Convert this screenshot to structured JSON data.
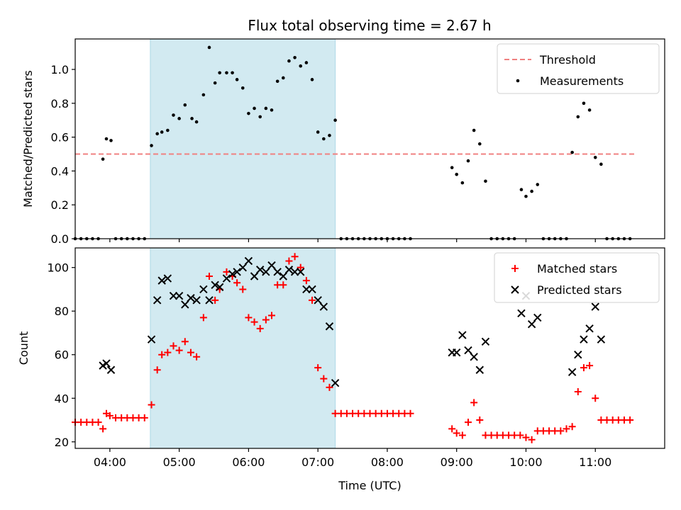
{
  "figure": {
    "title": "Flux total observing time = 2.67 h"
  },
  "chart_data": [
    {
      "type": "scatter",
      "xlabel": "",
      "ylabel": "Matched/Predicted stars",
      "xlim": [
        "03:30",
        "12:00"
      ],
      "ylim": [
        0,
        1.18
      ],
      "yticks": [
        "0.0",
        "0.2",
        "0.4",
        "0.6",
        "0.8",
        "1.0"
      ],
      "xticks": [
        "04:00",
        "05:00",
        "06:00",
        "07:00",
        "08:00",
        "09:00",
        "10:00",
        "11:00"
      ],
      "shaded_span": [
        "04:35",
        "07:15"
      ],
      "shaded_color": "#add8e6",
      "legend": {
        "position": "top-right",
        "entries": [
          "Threshold",
          "Measurements"
        ]
      },
      "threshold": {
        "name": "Threshold",
        "value": 0.5,
        "x_range": [
          "03:30",
          "11:35"
        ],
        "color": "#f08080",
        "style": "dashed"
      },
      "series": [
        {
          "name": "Measurements",
          "color": "#000000",
          "marker": "dot",
          "points": [
            [
              "03:30",
              0
            ],
            [
              "03:35",
              0
            ],
            [
              "03:40",
              0
            ],
            [
              "03:45",
              0
            ],
            [
              "03:50",
              0
            ],
            [
              "03:54",
              0.47
            ],
            [
              "03:57",
              0.59
            ],
            [
              "04:01",
              0.58
            ],
            [
              "04:05",
              0
            ],
            [
              "04:10",
              0
            ],
            [
              "04:15",
              0
            ],
            [
              "04:20",
              0
            ],
            [
              "04:25",
              0
            ],
            [
              "04:30",
              0
            ],
            [
              "04:36",
              0.55
            ],
            [
              "04:41",
              0.62
            ],
            [
              "04:45",
              0.63
            ],
            [
              "04:50",
              0.64
            ],
            [
              "04:55",
              0.73
            ],
            [
              "05:00",
              0.71
            ],
            [
              "05:05",
              0.79
            ],
            [
              "05:11",
              0.71
            ],
            [
              "05:15",
              0.69
            ],
            [
              "05:21",
              0.85
            ],
            [
              "05:26",
              1.13
            ],
            [
              "05:31",
              0.92
            ],
            [
              "05:35",
              0.98
            ],
            [
              "05:41",
              0.98
            ],
            [
              "05:46",
              0.98
            ],
            [
              "05:50",
              0.94
            ],
            [
              "05:55",
              0.89
            ],
            [
              "06:00",
              0.74
            ],
            [
              "06:05",
              0.77
            ],
            [
              "06:10",
              0.72
            ],
            [
              "06:15",
              0.77
            ],
            [
              "06:20",
              0.76
            ],
            [
              "06:25",
              0.93
            ],
            [
              "06:30",
              0.95
            ],
            [
              "06:35",
              1.05
            ],
            [
              "06:40",
              1.07
            ],
            [
              "06:45",
              1.02
            ],
            [
              "06:50",
              1.04
            ],
            [
              "06:55",
              0.94
            ],
            [
              "07:00",
              0.63
            ],
            [
              "07:05",
              0.59
            ],
            [
              "07:10",
              0.61
            ],
            [
              "07:15",
              0.7
            ],
            [
              "07:20",
              0
            ],
            [
              "07:25",
              0
            ],
            [
              "07:30",
              0
            ],
            [
              "07:35",
              0
            ],
            [
              "07:40",
              0
            ],
            [
              "07:45",
              0
            ],
            [
              "07:50",
              0
            ],
            [
              "07:55",
              0
            ],
            [
              "08:00",
              0
            ],
            [
              "08:05",
              0
            ],
            [
              "08:10",
              0
            ],
            [
              "08:15",
              0
            ],
            [
              "08:20",
              0
            ],
            [
              "08:56",
              0.42
            ],
            [
              "09:00",
              0.38
            ],
            [
              "09:05",
              0.33
            ],
            [
              "09:10",
              0.46
            ],
            [
              "09:15",
              0.64
            ],
            [
              "09:20",
              0.56
            ],
            [
              "09:25",
              0.34
            ],
            [
              "09:30",
              0
            ],
            [
              "09:35",
              0
            ],
            [
              "09:40",
              0
            ],
            [
              "09:45",
              0
            ],
            [
              "09:50",
              0
            ],
            [
              "09:56",
              0.29
            ],
            [
              "10:00",
              0.25
            ],
            [
              "10:05",
              0.28
            ],
            [
              "10:10",
              0.32
            ],
            [
              "10:15",
              0
            ],
            [
              "10:20",
              0
            ],
            [
              "10:25",
              0
            ],
            [
              "10:30",
              0
            ],
            [
              "10:35",
              0
            ],
            [
              "10:40",
              0.51
            ],
            [
              "10:45",
              0.72
            ],
            [
              "10:50",
              0.8
            ],
            [
              "10:55",
              0.76
            ],
            [
              "11:00",
              0.48
            ],
            [
              "11:05",
              0.44
            ],
            [
              "11:10",
              0
            ],
            [
              "11:15",
              0
            ],
            [
              "11:20",
              0
            ],
            [
              "11:25",
              0
            ],
            [
              "11:30",
              0
            ]
          ]
        }
      ]
    },
    {
      "type": "scatter",
      "xlabel": "Time (UTC)",
      "ylabel": "Count",
      "xlim": [
        "03:30",
        "12:00"
      ],
      "ylim": [
        17,
        109
      ],
      "yticks": [
        "20",
        "40",
        "60",
        "80",
        "100"
      ],
      "xticks": [
        "04:00",
        "05:00",
        "06:00",
        "07:00",
        "08:00",
        "09:00",
        "10:00",
        "11:00"
      ],
      "shaded_span": [
        "04:35",
        "07:15"
      ],
      "shaded_color": "#add8e6",
      "legend": {
        "position": "top-right",
        "entries": [
          "Matched stars",
          "Predicted stars"
        ]
      },
      "series": [
        {
          "name": "Matched stars",
          "color": "#ff0000",
          "marker": "plus",
          "points": [
            [
              "03:30",
              29
            ],
            [
              "03:35",
              29
            ],
            [
              "03:40",
              29
            ],
            [
              "03:45",
              29
            ],
            [
              "03:50",
              29
            ],
            [
              "03:54",
              26
            ],
            [
              "03:57",
              33
            ],
            [
              "04:00",
              32
            ],
            [
              "04:05",
              31
            ],
            [
              "04:10",
              31
            ],
            [
              "04:15",
              31
            ],
            [
              "04:20",
              31
            ],
            [
              "04:25",
              31
            ],
            [
              "04:30",
              31
            ],
            [
              "04:36",
              37
            ],
            [
              "04:41",
              53
            ],
            [
              "04:45",
              60
            ],
            [
              "04:50",
              61
            ],
            [
              "04:55",
              64
            ],
            [
              "05:00",
              62
            ],
            [
              "05:05",
              66
            ],
            [
              "05:10",
              61
            ],
            [
              "05:15",
              59
            ],
            [
              "05:21",
              77
            ],
            [
              "05:26",
              96
            ],
            [
              "05:31",
              85
            ],
            [
              "05:35",
              90
            ],
            [
              "05:41",
              98
            ],
            [
              "05:46",
              96
            ],
            [
              "05:50",
              93
            ],
            [
              "05:55",
              90
            ],
            [
              "06:00",
              77
            ],
            [
              "06:05",
              75
            ],
            [
              "06:10",
              72
            ],
            [
              "06:15",
              76
            ],
            [
              "06:20",
              78
            ],
            [
              "06:25",
              92
            ],
            [
              "06:30",
              92
            ],
            [
              "06:35",
              103
            ],
            [
              "06:40",
              105
            ],
            [
              "06:45",
              100
            ],
            [
              "06:50",
              94
            ],
            [
              "06:55",
              85
            ],
            [
              "07:00",
              54
            ],
            [
              "07:05",
              49
            ],
            [
              "07:10",
              45
            ],
            [
              "07:15",
              33
            ],
            [
              "07:20",
              33
            ],
            [
              "07:25",
              33
            ],
            [
              "07:30",
              33
            ],
            [
              "07:35",
              33
            ],
            [
              "07:40",
              33
            ],
            [
              "07:45",
              33
            ],
            [
              "07:50",
              33
            ],
            [
              "07:55",
              33
            ],
            [
              "08:00",
              33
            ],
            [
              "08:05",
              33
            ],
            [
              "08:10",
              33
            ],
            [
              "08:15",
              33
            ],
            [
              "08:20",
              33
            ],
            [
              "08:56",
              26
            ],
            [
              "09:00",
              24
            ],
            [
              "09:05",
              23
            ],
            [
              "09:10",
              29
            ],
            [
              "09:15",
              38
            ],
            [
              "09:20",
              30
            ],
            [
              "09:25",
              23
            ],
            [
              "09:30",
              23
            ],
            [
              "09:35",
              23
            ],
            [
              "09:40",
              23
            ],
            [
              "09:45",
              23
            ],
            [
              "09:50",
              23
            ],
            [
              "09:55",
              23
            ],
            [
              "10:00",
              22
            ],
            [
              "10:05",
              21
            ],
            [
              "10:10",
              25
            ],
            [
              "10:15",
              25
            ],
            [
              "10:20",
              25
            ],
            [
              "10:25",
              25
            ],
            [
              "10:30",
              25
            ],
            [
              "10:35",
              26
            ],
            [
              "10:40",
              27
            ],
            [
              "10:45",
              43
            ],
            [
              "10:50",
              54
            ],
            [
              "10:55",
              55
            ],
            [
              "11:00",
              40
            ],
            [
              "11:05",
              30
            ],
            [
              "11:10",
              30
            ],
            [
              "11:15",
              30
            ],
            [
              "11:20",
              30
            ],
            [
              "11:25",
              30
            ],
            [
              "11:30",
              30
            ]
          ]
        },
        {
          "name": "Predicted stars",
          "color": "#000000",
          "marker": "x",
          "points": [
            [
              "03:54",
              55
            ],
            [
              "03:57",
              56
            ],
            [
              "04:01",
              53
            ],
            [
              "04:36",
              67
            ],
            [
              "04:41",
              85
            ],
            [
              "04:45",
              94
            ],
            [
              "04:50",
              95
            ],
            [
              "04:55",
              87
            ],
            [
              "05:00",
              87
            ],
            [
              "05:05",
              83
            ],
            [
              "05:10",
              86
            ],
            [
              "05:15",
              85
            ],
            [
              "05:21",
              90
            ],
            [
              "05:26",
              85
            ],
            [
              "05:31",
              92
            ],
            [
              "05:35",
              91
            ],
            [
              "05:41",
              95
            ],
            [
              "05:46",
              97
            ],
            [
              "05:50",
              98
            ],
            [
              "05:55",
              100
            ],
            [
              "06:00",
              103
            ],
            [
              "06:05",
              96
            ],
            [
              "06:10",
              99
            ],
            [
              "06:15",
              98
            ],
            [
              "06:20",
              101
            ],
            [
              "06:25",
              98
            ],
            [
              "06:30",
              96
            ],
            [
              "06:35",
              99
            ],
            [
              "06:40",
              98
            ],
            [
              "06:45",
              98
            ],
            [
              "06:50",
              90
            ],
            [
              "06:55",
              90
            ],
            [
              "07:00",
              85
            ],
            [
              "07:05",
              82
            ],
            [
              "07:10",
              73
            ],
            [
              "07:15",
              47
            ],
            [
              "08:56",
              61
            ],
            [
              "09:00",
              61
            ],
            [
              "09:05",
              69
            ],
            [
              "09:10",
              62
            ],
            [
              "09:15",
              59
            ],
            [
              "09:20",
              53
            ],
            [
              "09:25",
              66
            ],
            [
              "09:56",
              79
            ],
            [
              "10:00",
              87
            ],
            [
              "10:05",
              74
            ],
            [
              "10:10",
              77
            ],
            [
              "10:40",
              52
            ],
            [
              "10:45",
              60
            ],
            [
              "10:50",
              67
            ],
            [
              "10:55",
              72
            ],
            [
              "11:00",
              82
            ],
            [
              "11:05",
              67
            ]
          ]
        }
      ]
    }
  ]
}
